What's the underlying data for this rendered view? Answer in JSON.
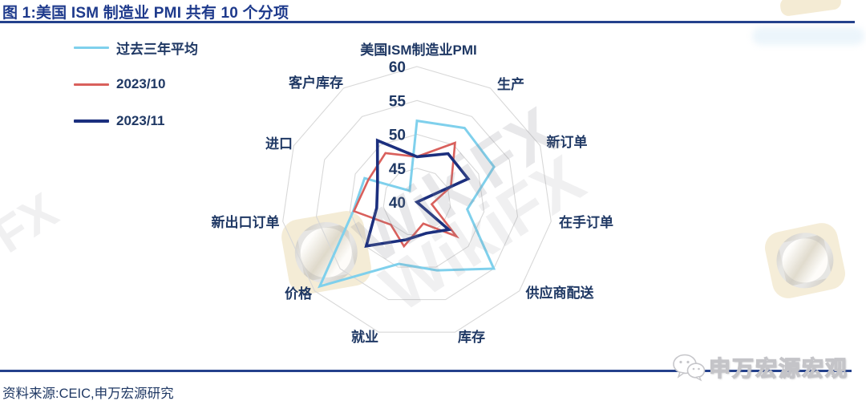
{
  "header": {
    "title": "图 1:美国 ISM 制造业 PMI 共有 10 个分项"
  },
  "source": {
    "text": "资料来源:CEIC,申万宏源研究"
  },
  "watermarks": {
    "brand": "WikiFX",
    "brand_short": "FX",
    "bottom_right": "申万宏源宏观",
    "wechat_icon": "chat-bubbles-icon",
    "eagle_logo": "eagle-shutter-logo"
  },
  "colors": {
    "title_navy": "#1E3A8C",
    "text_navy": "#1F3864",
    "divider_navy": "#24418C",
    "grid_gray": "#D8D8D8",
    "series_avg": "#7FD0EC",
    "series_oct": "#D9605C",
    "series_nov": "#1B2F7E",
    "watermark_tan": "#F3E9CF"
  },
  "chart_data": {
    "type": "radar",
    "categories": [
      "美国ISM制造业PMI",
      "生产",
      "新订单",
      "在手订单",
      "供应商配送",
      "库存",
      "就业",
      "价格",
      "新出口订单",
      "进口",
      "客户库存"
    ],
    "series": [
      {
        "name": "过去三年平均",
        "color": "#7FD0EC",
        "values": [
          52.0,
          53.0,
          52.5,
          47.5,
          55.0,
          50.5,
          49.5,
          59.0,
          49.5,
          48.5,
          42.0
        ]
      },
      {
        "name": "2023/10",
        "color": "#D9605C",
        "values": [
          46.7,
          50.4,
          45.5,
          42.2,
          47.7,
          43.3,
          46.8,
          45.1,
          49.4,
          47.9,
          48.6
        ]
      },
      {
        "name": "2023/11",
        "color": "#1B2F7E",
        "values": [
          46.7,
          48.5,
          48.3,
          39.3,
          46.2,
          44.8,
          45.8,
          49.9,
          46.0,
          46.4,
          50.8
        ]
      }
    ],
    "axis": {
      "min": 40,
      "max": 60,
      "step": 5,
      "tick_labels": [
        "40",
        "45",
        "50",
        "55",
        "60"
      ]
    },
    "grid": "concentric decagon rings, no radial spokes",
    "legend_position": "top-left",
    "note": "values below axis min plot at chart center"
  }
}
